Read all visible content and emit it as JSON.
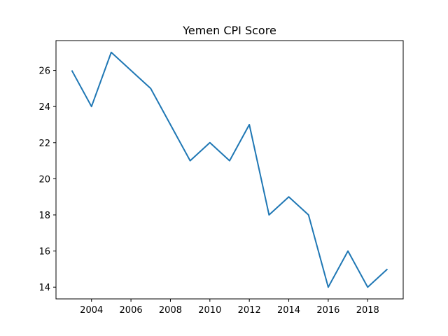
{
  "chart_data": {
    "type": "line",
    "title": "Yemen CPI Score",
    "xlabel": "",
    "ylabel": "",
    "xlim": [
      2002.2,
      2019.8
    ],
    "ylim": [
      13.35,
      27.65
    ],
    "x_ticks": [
      2004,
      2006,
      2008,
      2010,
      2012,
      2014,
      2016,
      2018
    ],
    "y_ticks": [
      14,
      16,
      18,
      20,
      22,
      24,
      26
    ],
    "grid": false,
    "series": [
      {
        "x": [
          2003,
          2004,
          2005,
          2006,
          2007,
          2008,
          2009,
          2010,
          2011,
          2012,
          2013,
          2014,
          2015,
          2016,
          2017,
          2018,
          2019
        ],
        "values": [
          26,
          24,
          27,
          26,
          25,
          23,
          21,
          22,
          21,
          23,
          18,
          19,
          18,
          14,
          16,
          14,
          15
        ],
        "color": "#1f77b4"
      }
    ]
  }
}
